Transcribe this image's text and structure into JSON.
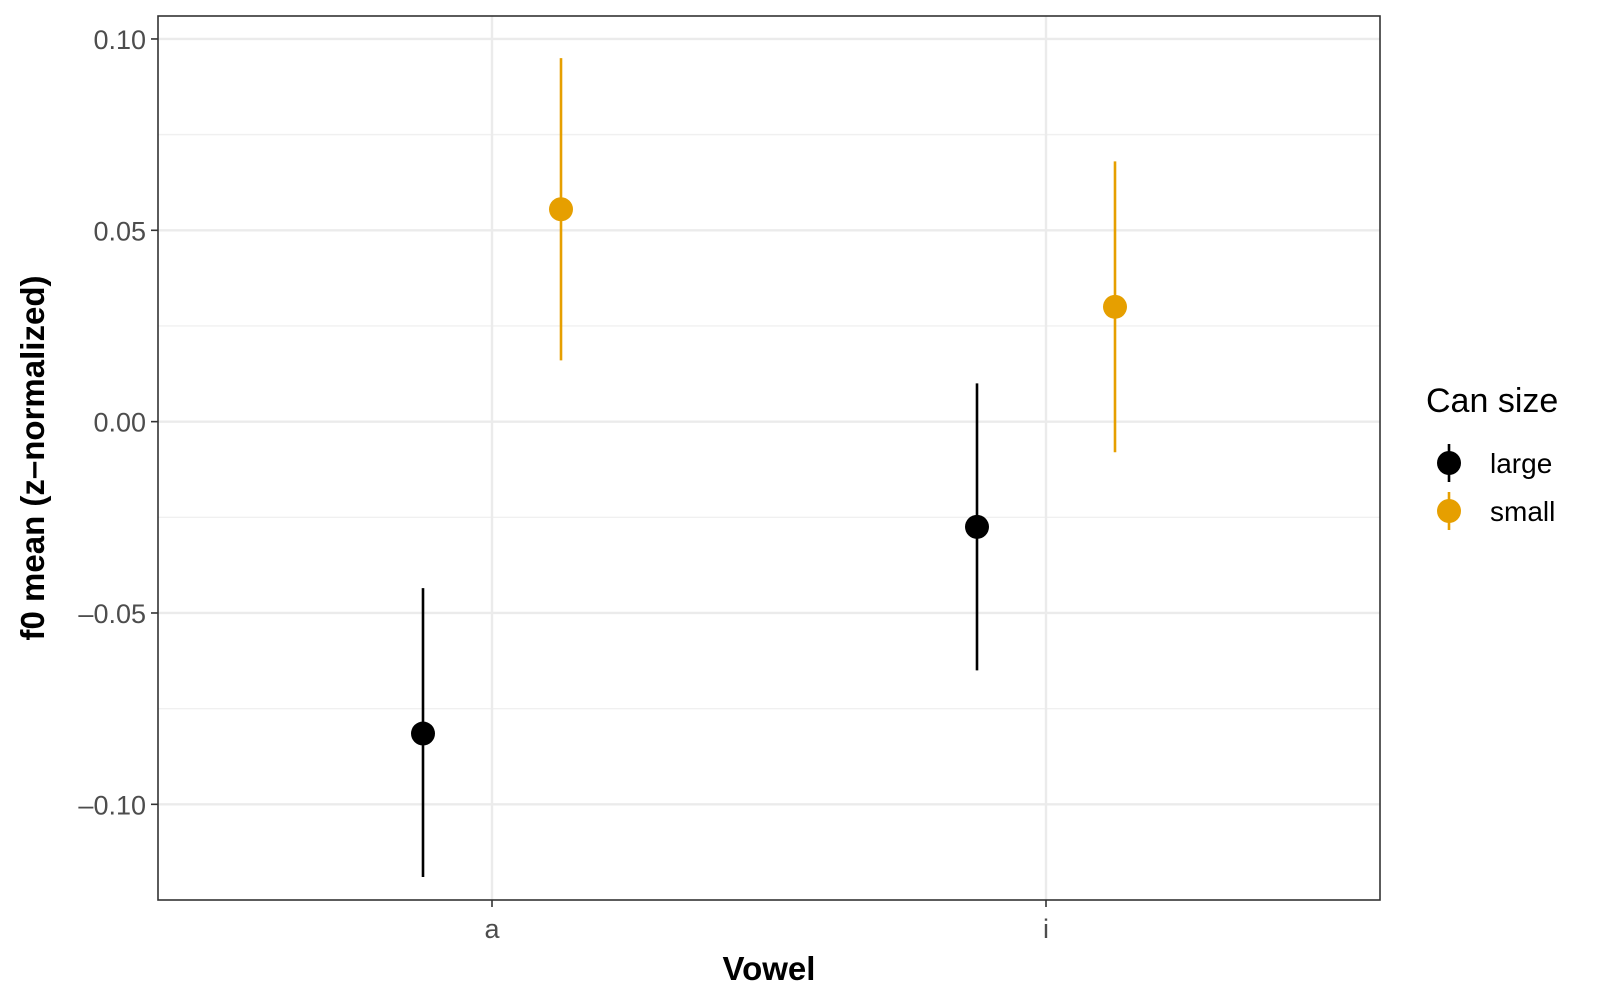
{
  "chart_data": {
    "type": "scatter",
    "subtype": "pointrange",
    "xlabel": "Vowel",
    "ylabel": "f0 mean (z–normalized)",
    "categories": [
      "a",
      "i"
    ],
    "ylim": [
      -0.125,
      0.106
    ],
    "yticks": [
      0.1,
      0.05,
      0.0,
      -0.05,
      -0.1
    ],
    "ytick_labels": [
      "0.10",
      "0.05",
      "0.00",
      "–0.05",
      "–0.10"
    ],
    "grid": true,
    "legend": {
      "title": "Can size",
      "placement": "right"
    },
    "series": [
      {
        "name": "large",
        "color": "#000000",
        "points": [
          {
            "x": "a",
            "y": -0.0815,
            "ymin": -0.119,
            "ymax": -0.0435
          },
          {
            "x": "i",
            "y": -0.0275,
            "ymin": -0.065,
            "ymax": 0.01
          }
        ]
      },
      {
        "name": "small",
        "color": "#E69F00",
        "points": [
          {
            "x": "a",
            "y": 0.0555,
            "ymin": 0.016,
            "ymax": 0.095
          },
          {
            "x": "i",
            "y": 0.03,
            "ymin": -0.008,
            "ymax": 0.068
          }
        ]
      }
    ]
  }
}
